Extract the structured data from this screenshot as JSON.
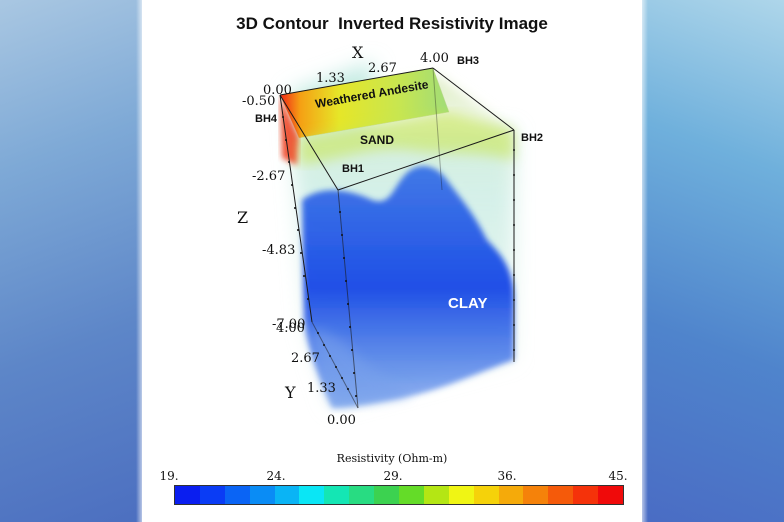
{
  "title": "3D Contour  Inverted Resistivity Image",
  "axes": {
    "x": {
      "label": "X",
      "ticks": [
        "0.00",
        "1.33",
        "2.67",
        "4.00"
      ]
    },
    "y": {
      "label": "Y",
      "ticks": [
        "0.00",
        "1.33",
        "2.67",
        "4.00"
      ]
    },
    "z": {
      "label": "Z",
      "ticks": [
        "-0.50",
        "-2.67",
        "-4.83",
        "-7.00"
      ]
    }
  },
  "boreholes": [
    "BH1",
    "BH2",
    "BH3",
    "BH4"
  ],
  "annotations": {
    "weathered": "Weathered Andesite",
    "sand": "SAND",
    "clay": "CLAY"
  },
  "colorbar": {
    "title": "Resistivity (Ohm-m)",
    "ticks": [
      "19.",
      "24.",
      "29.",
      "36.",
      "45."
    ],
    "colors": [
      "#0a1ef0",
      "#0a3cf5",
      "#0a64f5",
      "#0a8cf5",
      "#0ab4f5",
      "#0ae6f5",
      "#14e6b4",
      "#28dc82",
      "#3cd250",
      "#64dc28",
      "#b4e614",
      "#f0f514",
      "#f5d20a",
      "#f5aa0a",
      "#f5820a",
      "#f55a0a",
      "#f5320a",
      "#f00a0a"
    ]
  }
}
